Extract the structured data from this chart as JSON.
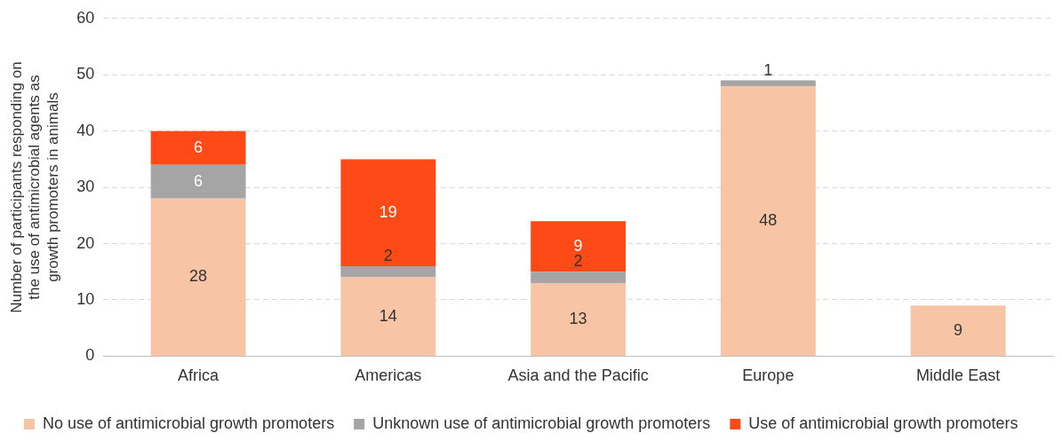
{
  "chart_data": {
    "type": "bar",
    "stacked": true,
    "categories": [
      "Africa",
      "Americas",
      "Asia and the Pacific",
      "Europe",
      "Middle East"
    ],
    "ylabel": "Number of participants responding on the use of antimicrobial agents as growth promoters in animals",
    "ylim": [
      0,
      60
    ],
    "yticks": [
      0,
      10,
      20,
      30,
      40,
      50,
      60
    ],
    "grid": "y",
    "legend": "bottom",
    "data_labels": true,
    "series": [
      {
        "name": "No use of antimicrobial growth promoters",
        "color": "#f7c4a5",
        "values": [
          28,
          14,
          13,
          48,
          9
        ]
      },
      {
        "name": "Unknown use of antimicrobial growth promoters",
        "color": "#a5a5a5",
        "values": [
          6,
          2,
          2,
          1,
          null
        ]
      },
      {
        "name": "Use of antimicrobial growth promoters",
        "color": "#fe4a17",
        "values": [
          6,
          19,
          9,
          null,
          null
        ]
      }
    ]
  }
}
